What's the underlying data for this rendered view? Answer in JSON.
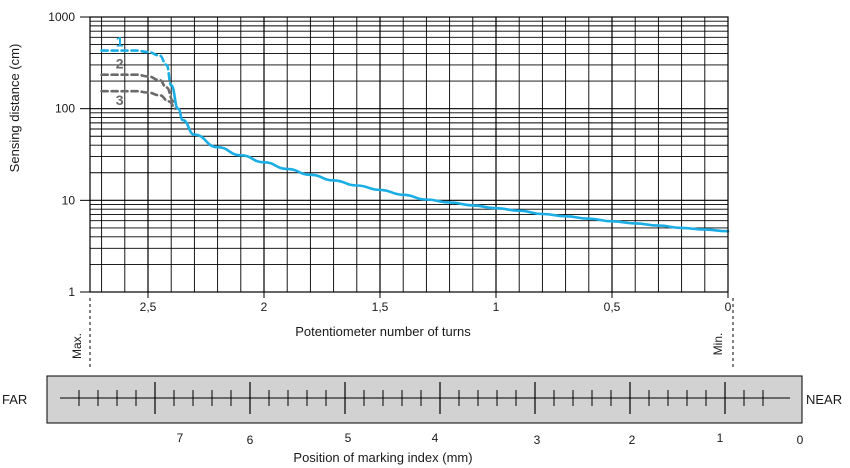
{
  "chart_data": {
    "type": "line",
    "title": "",
    "xlabel": "Potentiometer number of turns",
    "ylabel": "Sensing distance (cm)",
    "x_reversed": true,
    "xlim": [
      0,
      2.75
    ],
    "ylim": [
      1,
      1000
    ],
    "y_scale": "log",
    "grid": true,
    "x_ticks": [
      {
        "value": 2.5,
        "label": "2,5"
      },
      {
        "value": 2,
        "label": "2"
      },
      {
        "value": 1.5,
        "label": "1,5"
      },
      {
        "value": 1,
        "label": "1"
      },
      {
        "value": 0.5,
        "label": "0,5"
      },
      {
        "value": 0,
        "label": "0"
      }
    ],
    "y_ticks": [
      {
        "value": 1000,
        "label": "1000"
      },
      {
        "value": 100,
        "label": "100"
      },
      {
        "value": 10,
        "label": "10"
      },
      {
        "value": 1,
        "label": "1"
      }
    ],
    "max_label": "Max.",
    "min_label": "Min.",
    "series": [
      {
        "name": "1",
        "color": "#1aaee5",
        "style": "dashed",
        "x": [
          2.7,
          2.55,
          2.5,
          2.45,
          2.42,
          2.4
        ],
        "y": [
          430,
          430,
          415,
          380,
          300,
          180
        ]
      },
      {
        "name": "2",
        "color": "#6b6b6b",
        "style": "dashed",
        "x": [
          2.7,
          2.55,
          2.5,
          2.45,
          2.42,
          2.39
        ],
        "y": [
          235,
          235,
          225,
          205,
          170,
          120
        ]
      },
      {
        "name": "3",
        "color": "#6b6b6b",
        "style": "dashed",
        "x": [
          2.7,
          2.55,
          2.5,
          2.45,
          2.41,
          2.38
        ],
        "y": [
          155,
          155,
          150,
          140,
          120,
          100
        ]
      },
      {
        "name": "",
        "color": "#1aaee5",
        "style": "solid",
        "x": [
          2.4,
          2.37,
          2.35,
          2.3,
          2.2,
          2.1,
          2.0,
          1.9,
          1.8,
          1.7,
          1.6,
          1.5,
          1.4,
          1.3,
          1.2,
          1.1,
          1.0,
          0.9,
          0.8,
          0.7,
          0.6,
          0.5,
          0.4,
          0.3,
          0.2,
          0.1,
          0.0
        ],
        "y": [
          180,
          100,
          75,
          52,
          38,
          31,
          26,
          22,
          19,
          16.5,
          14.5,
          13,
          11.5,
          10.2,
          9.5,
          8.8,
          8.2,
          7.7,
          7.1,
          6.7,
          6.3,
          5.9,
          5.6,
          5.3,
          5.0,
          4.8,
          4.6
        ]
      }
    ],
    "marking_scale": {
      "far_label": "FAR",
      "near_label": "NEAR",
      "xlabel": "Position of marking index (mm)",
      "labels": [
        "7",
        "6",
        "5",
        "4",
        "3",
        "2",
        "1",
        "0"
      ],
      "band_color": "#d2d2d2"
    }
  }
}
